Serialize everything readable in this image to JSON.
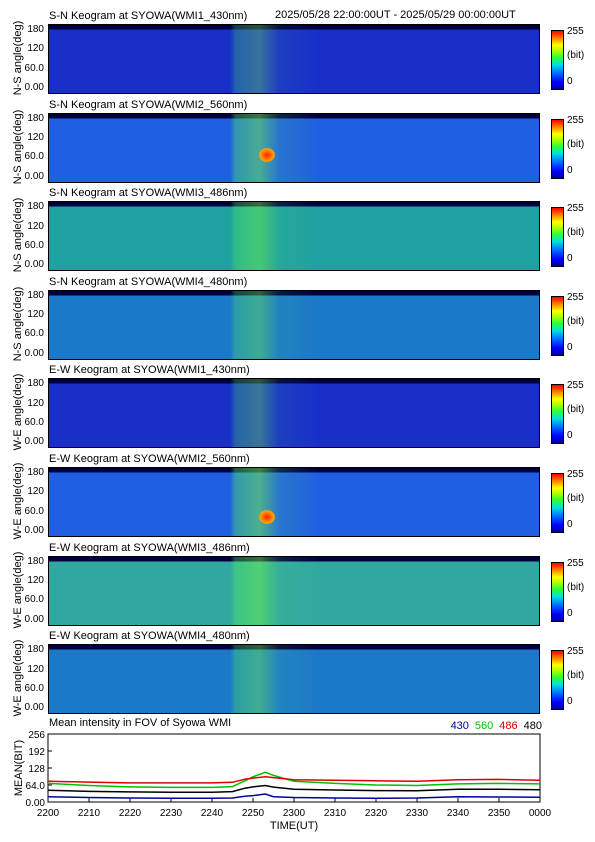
{
  "header": {
    "time_range": "2025/05/28 22:00:00UT - 2025/05/29 00:00:00UT"
  },
  "colorbar": {
    "max_label": "255",
    "unit_label": "(bit)",
    "min_label": "0"
  },
  "keograms": [
    {
      "title": "S-N Keogram at SYOWA(WMI1_430nm)",
      "ylabel": "N-S angle(deg)",
      "ticks": [
        "180",
        "120",
        "60.0",
        "0.00"
      ],
      "base_color": "#1830c8",
      "bright": 0.25
    },
    {
      "title": "S-N Keogram at SYOWA(WMI2_560nm)",
      "ylabel": "N-S angle(deg)",
      "ticks": [
        "180",
        "120",
        "60.0",
        "0.00"
      ],
      "base_color": "#2060e0",
      "bright": 0.55
    },
    {
      "title": "S-N Keogram at SYOWA(WMI3_486nm)",
      "ylabel": "N-S angle(deg)",
      "ticks": [
        "180",
        "120",
        "60.0",
        "0.00"
      ],
      "base_color": "#20a0a0",
      "bright": 0.45
    },
    {
      "title": "S-N Keogram at SYOWA(WMI4_480nm)",
      "ylabel": "N-S angle(deg)",
      "ticks": [
        "180",
        "120",
        "60.0",
        "0.00"
      ],
      "base_color": "#1c78c8",
      "bright": 0.35
    },
    {
      "title": "E-W Keogram at SYOWA(WMI1_430nm)",
      "ylabel": "W-E angle(deg)",
      "ticks": [
        "180",
        "120",
        "60.0",
        "0.00"
      ],
      "base_color": "#1830c8",
      "bright": 0.28
    },
    {
      "title": "E-W Keogram at SYOWA(WMI2_560nm)",
      "ylabel": "W-E angle(deg)",
      "ticks": [
        "180",
        "120",
        "60.0",
        "0.00"
      ],
      "base_color": "#2060e0",
      "bright": 0.6
    },
    {
      "title": "E-W Keogram at SYOWA(WMI3_486nm)",
      "ylabel": "W-E angle(deg)",
      "ticks": [
        "180",
        "120",
        "60.0",
        "0.00"
      ],
      "base_color": "#30a8a0",
      "bright": 0.5
    },
    {
      "title": "E-W Keogram at SYOWA(WMI4_480nm)",
      "ylabel": "W-E angle(deg)",
      "ticks": [
        "180",
        "120",
        "60.0",
        "0.00"
      ],
      "base_color": "#1c78c8",
      "bright": 0.38
    }
  ],
  "chart_data": {
    "type": "line",
    "title": "Mean intensity in FOV of Syowa WMI",
    "xlabel": "TIME(UT)",
    "ylabel": "MEAN(BIT)",
    "x_tick_labels": [
      "2200",
      "2210",
      "2220",
      "2230",
      "2240",
      "2250",
      "2300",
      "2310",
      "2320",
      "2330",
      "2340",
      "2350",
      "0000"
    ],
    "y_tick_labels": [
      "256",
      "192",
      "128",
      "64.0",
      "0.00"
    ],
    "ylim": [
      0,
      256
    ],
    "x": [
      0,
      10,
      20,
      30,
      40,
      45,
      48,
      50,
      53,
      55,
      60,
      70,
      80,
      90,
      100,
      110,
      120
    ],
    "series": [
      {
        "name": "430",
        "color": "#0000a0",
        "values": [
          20,
          17,
          15,
          14,
          14,
          15,
          22,
          24,
          30,
          20,
          17,
          15,
          14,
          15,
          20,
          19,
          18
        ]
      },
      {
        "name": "560",
        "color": "#00c000",
        "values": [
          70,
          62,
          57,
          55,
          55,
          58,
          80,
          95,
          112,
          100,
          78,
          70,
          64,
          62,
          68,
          70,
          68
        ]
      },
      {
        "name": "486",
        "color": "#e00000",
        "values": [
          78,
          75,
          72,
          72,
          72,
          74,
          86,
          90,
          95,
          92,
          84,
          82,
          80,
          78,
          84,
          85,
          82
        ]
      },
      {
        "name": "480",
        "color": "#000000",
        "values": [
          44,
          40,
          38,
          37,
          37,
          39,
          52,
          57,
          62,
          56,
          48,
          45,
          43,
          42,
          48,
          48,
          46
        ]
      }
    ]
  }
}
